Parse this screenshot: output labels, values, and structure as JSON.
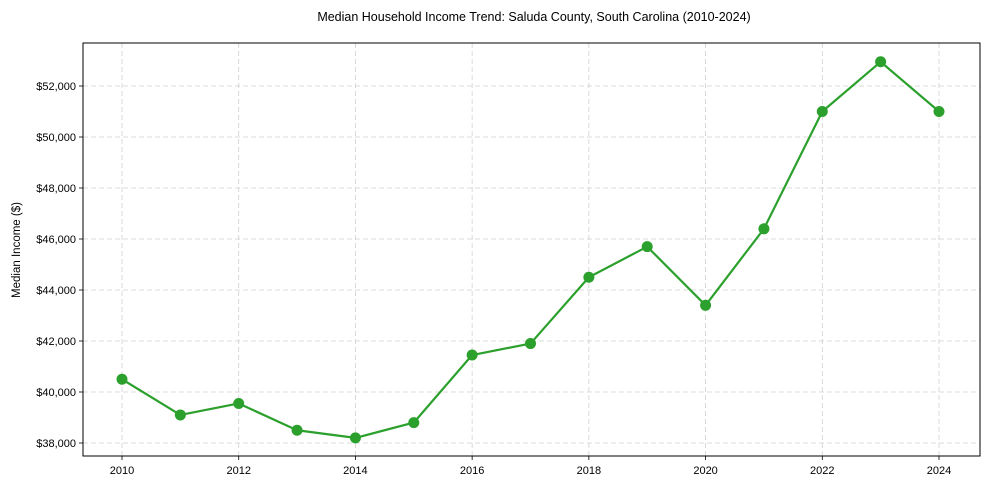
{
  "chart_data": {
    "type": "line",
    "title": "Median Household Income Trend: Saluda County, South Carolina (2010-2024)",
    "xlabel": "",
    "ylabel": "Median Income ($)",
    "x": [
      2010,
      2011,
      2012,
      2013,
      2014,
      2015,
      2016,
      2017,
      2018,
      2019,
      2020,
      2021,
      2022,
      2023,
      2024
    ],
    "series": [
      {
        "name": "Median Household Income",
        "color": "#2ca02c",
        "values": [
          40500,
          39100,
          39550,
          38500,
          38200,
          38800,
          41450,
          41900,
          44500,
          45700,
          43400,
          46400,
          51000,
          52950,
          51000
        ]
      }
    ],
    "xticks": [
      2010,
      2012,
      2014,
      2016,
      2018,
      2020,
      2022,
      2024
    ],
    "xtick_labels": [
      "2010",
      "2012",
      "2014",
      "2016",
      "2018",
      "2020",
      "2022",
      "2024"
    ],
    "yticks": [
      38000,
      40000,
      42000,
      44000,
      46000,
      48000,
      50000,
      52000
    ],
    "ytick_labels": [
      "$38,000",
      "$40,000",
      "$42,000",
      "$44,000",
      "$46,000",
      "$48,000",
      "$50,000",
      "$52,000"
    ],
    "xlim": [
      2009.3,
      2024.7
    ],
    "ylim": [
      37500,
      53650
    ],
    "grid": true,
    "grid_style": "dashed",
    "legend": false
  }
}
